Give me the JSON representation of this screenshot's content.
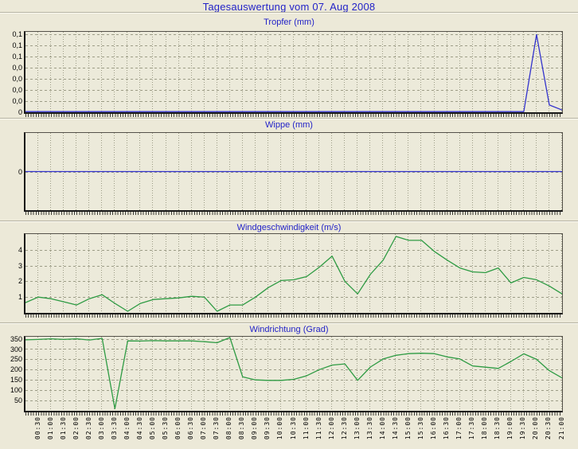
{
  "page_title": "Tagesauswertung vom 07. Aug 2008",
  "colors": {
    "background": "#ece9d8",
    "plot_background": "#eceada",
    "title_blue": "#2323c8",
    "line_blue": "#3333cc",
    "line_green": "#2e9b43",
    "grid": "#9c9c86",
    "axis": "#191919",
    "tick_label": "#000000"
  },
  "x_axis": {
    "start": "00:00",
    "end": "21:00",
    "step_minutes": 30,
    "tick_labels": [
      "00:30",
      "01:00",
      "01:30",
      "02:00",
      "02:30",
      "03:00",
      "03:30",
      "04:00",
      "04:30",
      "05:00",
      "05:30",
      "06:00",
      "06:30",
      "07:00",
      "07:30",
      "08:00",
      "08:30",
      "09:00",
      "09:30",
      "10:00",
      "10:30",
      "11:00",
      "11:30",
      "12:00",
      "12:30",
      "13:00",
      "13:30",
      "14:00",
      "14:30",
      "15:00",
      "15:30",
      "16:00",
      "16:30",
      "17:00",
      "17:30",
      "18:00",
      "18:30",
      "19:00",
      "19:30",
      "20:00",
      "20:30",
      "21:00"
    ]
  },
  "chart_data": [
    {
      "id": "tropfer",
      "type": "line",
      "title": "Tropfer (mm)",
      "color": "#3333cc",
      "ylim": [
        0,
        0.145
      ],
      "ytick_values": [
        0.14,
        0.12,
        0.1,
        0.08,
        0.06,
        0.04,
        0.02,
        0
      ],
      "ytick_labels": [
        "0,1",
        "0,1",
        "0,1",
        "0,0",
        "0,0",
        "0,0",
        "0,0",
        "0"
      ],
      "x_start": "00:00",
      "x_step_minutes": 30,
      "values": [
        0,
        0,
        0,
        0,
        0,
        0,
        0,
        0,
        0,
        0,
        0,
        0,
        0,
        0,
        0,
        0,
        0,
        0,
        0,
        0,
        0,
        0,
        0,
        0,
        0,
        0,
        0,
        0,
        0,
        0,
        0,
        0,
        0,
        0,
        0,
        0,
        0,
        0,
        0,
        0,
        0.14,
        0.013,
        0.004
      ]
    },
    {
      "id": "wippe",
      "type": "line",
      "title": "Wippe (mm)",
      "color": "#3333cc",
      "ylim": [
        -1,
        1
      ],
      "ytick_values": [
        0
      ],
      "ytick_labels": [
        "0"
      ],
      "x_start": "00:00",
      "x_step_minutes": 30,
      "values": [
        0,
        0,
        0,
        0,
        0,
        0,
        0,
        0,
        0,
        0,
        0,
        0,
        0,
        0,
        0,
        0,
        0,
        0,
        0,
        0,
        0,
        0,
        0,
        0,
        0,
        0,
        0,
        0,
        0,
        0,
        0,
        0,
        0,
        0,
        0,
        0,
        0,
        0,
        0,
        0,
        0,
        0,
        0
      ]
    },
    {
      "id": "windgeschwindigkeit",
      "type": "line",
      "title": "Windgeschwindigkeit (m/s)",
      "color": "#2e9b43",
      "ylim": [
        0,
        5
      ],
      "ytick_values": [
        4,
        3,
        2,
        1
      ],
      "ytick_labels": [
        "4",
        "3",
        "2",
        "1"
      ],
      "x_start": "00:00",
      "x_step_minutes": 30,
      "values": [
        0.65,
        1.0,
        0.9,
        0.7,
        0.5,
        0.9,
        1.15,
        0.6,
        0.1,
        0.6,
        0.85,
        0.9,
        0.95,
        1.05,
        1.0,
        0.1,
        0.5,
        0.5,
        1.0,
        1.6,
        2.05,
        2.1,
        2.3,
        2.9,
        3.6,
        2.0,
        1.2,
        2.45,
        3.35,
        4.85,
        4.6,
        4.6,
        3.9,
        3.35,
        2.85,
        2.6,
        2.55,
        2.85,
        1.9,
        2.25,
        2.1,
        1.7,
        1.2
      ]
    },
    {
      "id": "windrichtung",
      "type": "line",
      "title": "Windrichtung (Grad)",
      "color": "#2e9b43",
      "ylim": [
        0,
        360
      ],
      "ytick_values": [
        350,
        300,
        250,
        200,
        150,
        100,
        50
      ],
      "ytick_labels": [
        "350",
        "300",
        "250",
        "200",
        "150",
        "100",
        "50"
      ],
      "x_start": "00:00",
      "x_step_minutes": 30,
      "values": [
        345,
        347,
        350,
        347,
        350,
        344,
        352,
        10,
        340,
        339,
        341,
        340,
        340,
        340,
        336,
        331,
        356,
        165,
        150,
        148,
        148,
        153,
        170,
        200,
        222,
        228,
        148,
        213,
        252,
        270,
        278,
        280,
        278,
        262,
        252,
        218,
        212,
        206,
        240,
        277,
        250,
        195,
        160
      ]
    }
  ]
}
